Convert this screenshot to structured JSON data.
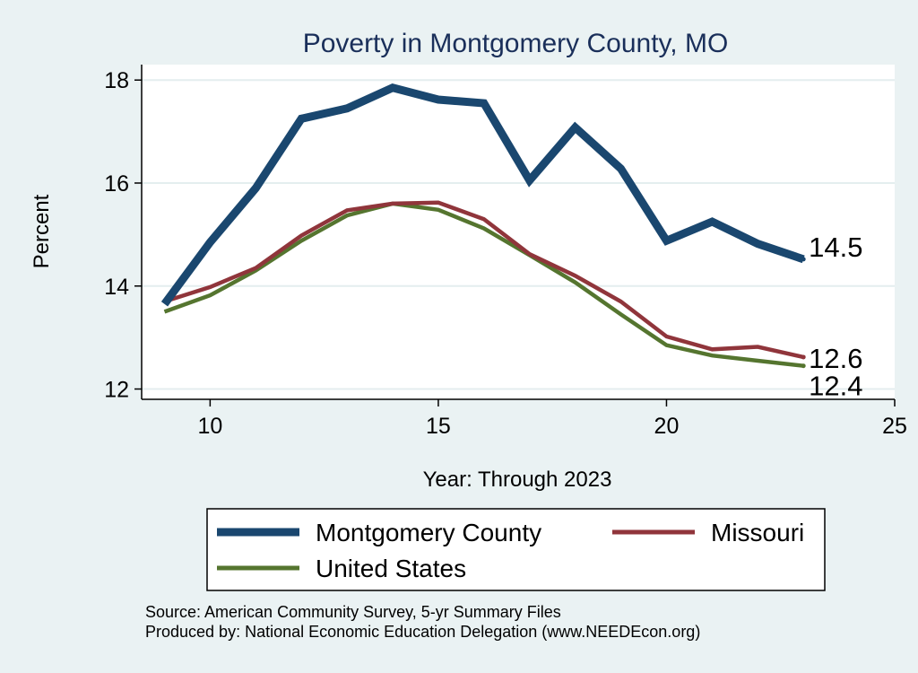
{
  "chart_data": {
    "type": "line",
    "title": "Poverty in Montgomery County, MO",
    "xlabel": "Year: Through 2023",
    "ylabel": "Percent",
    "xlim": [
      8.5,
      25
    ],
    "ylim": [
      11.8,
      18.3
    ],
    "xticks": [
      10,
      15,
      20,
      25
    ],
    "yticks": [
      12,
      14,
      16,
      18
    ],
    "grid": "horizontal",
    "legend_position": "bottom",
    "x": [
      9,
      10,
      11,
      12,
      13,
      14,
      15,
      16,
      17,
      18,
      19,
      20,
      21,
      22,
      23
    ],
    "series": [
      {
        "name": "Montgomery County",
        "color": "#1a476f",
        "values": [
          13.65,
          14.85,
          15.9,
          17.25,
          17.45,
          17.85,
          17.62,
          17.55,
          16.05,
          17.08,
          16.28,
          14.88,
          15.25,
          14.82,
          14.52
        ],
        "end_label": "14.5"
      },
      {
        "name": "Missouri",
        "color": "#90353b",
        "values": [
          13.7,
          13.98,
          14.35,
          14.98,
          15.47,
          15.6,
          15.62,
          15.3,
          14.62,
          14.2,
          13.7,
          13.02,
          12.77,
          12.82,
          12.62
        ],
        "end_label": "12.6"
      },
      {
        "name": "United States",
        "color": "#55752f",
        "values": [
          13.5,
          13.82,
          14.3,
          14.88,
          15.37,
          15.6,
          15.48,
          15.12,
          14.6,
          14.07,
          13.45,
          12.85,
          12.65,
          12.55,
          12.45
        ],
        "end_label": "12.4"
      }
    ]
  },
  "notes": {
    "source": "Source: American Community Survey, 5-yr Summary Files",
    "produced_by": "Produced by: National Economic Education Delegation (www.NEEDEcon.org)"
  }
}
